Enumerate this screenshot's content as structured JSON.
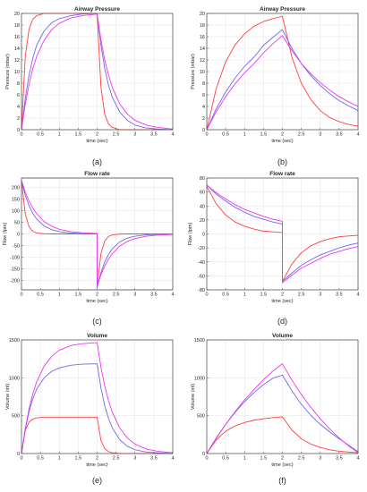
{
  "colors": {
    "red": "#ff4040",
    "blue": "#6a6ae8",
    "magenta": "#f035f0"
  },
  "chart_data": [
    {
      "type": "line",
      "panel_label": "(a)",
      "title": "Airway Pressure",
      "xlabel": "time (sec)",
      "ylabel": "Pressure (mbar)",
      "xlim": [
        0,
        4
      ],
      "ylim": [
        0,
        20
      ],
      "grid": true,
      "xticks": [
        0,
        0.5,
        1,
        1.5,
        2,
        2.5,
        3,
        3.5,
        4
      ],
      "xticklabels": [
        "0",
        "0.5",
        "1",
        "1.5",
        "2",
        "2.5",
        "3",
        "3.5",
        "4"
      ],
      "yticks": [
        0,
        2,
        4,
        6,
        8,
        10,
        12,
        14,
        16,
        18,
        20
      ],
      "yticklabels": [
        "0",
        "2",
        "4",
        "6",
        "8",
        "10",
        "12",
        "14",
        "16",
        "18",
        "20"
      ],
      "x": [
        0,
        0.1,
        0.2,
        0.3,
        0.4,
        0.6,
        0.8,
        1.0,
        1.3,
        1.6,
        2.0,
        2.1,
        2.2,
        2.3,
        2.4,
        2.6,
        2.8,
        3.0,
        3.3,
        3.6,
        4.0
      ],
      "series": [
        {
          "color": "red",
          "values": [
            0,
            12.6,
            17.3,
            19.0,
            19.6,
            20.0,
            20.0,
            20.0,
            20.0,
            20.0,
            20.0,
            7.4,
            2.7,
            1.0,
            0.4,
            0.0,
            0.0,
            0.0,
            0.0,
            0.0,
            0.0
          ]
        },
        {
          "color": "blue",
          "values": [
            0,
            5.4,
            9.4,
            12.3,
            14.5,
            17.0,
            18.4,
            19.1,
            19.6,
            19.9,
            20.0,
            14.6,
            10.6,
            7.7,
            5.6,
            3.0,
            1.6,
            0.8,
            0.3,
            0.1,
            0.0
          ]
        },
        {
          "color": "magenta",
          "values": [
            0,
            4.4,
            7.8,
            10.5,
            12.6,
            15.4,
            17.2,
            18.3,
            19.2,
            19.6,
            19.9,
            15.5,
            12.0,
            9.4,
            7.3,
            4.4,
            2.7,
            1.6,
            0.8,
            0.4,
            0.1
          ]
        }
      ]
    },
    {
      "type": "line",
      "panel_label": "(b)",
      "title": "Airway Pressure",
      "xlabel": "time (sec)",
      "ylabel": "Pressure (mbar)",
      "xlim": [
        0,
        4
      ],
      "ylim": [
        0,
        20
      ],
      "grid": true,
      "xticks": [
        0,
        0.5,
        1,
        1.5,
        2,
        2.5,
        3,
        3.5,
        4
      ],
      "xticklabels": [
        "0",
        "0.5",
        "1",
        "1.5",
        "2",
        "2.5",
        "3",
        "3.5",
        "4"
      ],
      "yticks": [
        0,
        2,
        4,
        6,
        8,
        10,
        12,
        14,
        16,
        18,
        20
      ],
      "yticklabels": [
        "0",
        "2",
        "4",
        "6",
        "8",
        "10",
        "12",
        "14",
        "16",
        "18",
        "20"
      ],
      "x": [
        0,
        0.25,
        0.5,
        0.75,
        1.0,
        1.25,
        1.5,
        1.75,
        2.0,
        2.25,
        2.5,
        2.75,
        3.0,
        3.25,
        3.5,
        3.75,
        4.0
      ],
      "series": [
        {
          "color": "red",
          "values": [
            0,
            7.1,
            11.7,
            14.6,
            16.5,
            17.8,
            18.6,
            19.1,
            19.5,
            12.5,
            8.0,
            5.2,
            3.3,
            2.1,
            1.4,
            0.9,
            0.6
          ]
        },
        {
          "color": "blue",
          "values": [
            0,
            3.6,
            6.5,
            8.9,
            10.9,
            12.5,
            14.5,
            15.9,
            17.2,
            14.0,
            11.4,
            9.3,
            7.6,
            6.2,
            5.0,
            4.1,
            3.3
          ]
        },
        {
          "color": "magenta",
          "values": [
            0,
            3.1,
            5.7,
            7.9,
            9.8,
            11.4,
            13.2,
            14.8,
            16.2,
            13.6,
            11.4,
            9.6,
            8.1,
            6.8,
            5.7,
            4.8,
            4.0
          ]
        }
      ]
    },
    {
      "type": "line",
      "panel_label": "(c)",
      "title": "Flow rate",
      "xlabel": "time (sec)",
      "ylabel": "Flow (lpm)",
      "xlim": [
        0,
        4
      ],
      "ylim": [
        -240,
        240
      ],
      "grid": true,
      "xticks": [
        0,
        0.5,
        1,
        1.5,
        2,
        2.5,
        3,
        3.5,
        4
      ],
      "xticklabels": [
        "0",
        "0.5",
        "1",
        "1.5",
        "2",
        "2.5",
        "3",
        "3.5",
        "4"
      ],
      "yticks": [
        -200,
        -150,
        -100,
        -50,
        0,
        50,
        100,
        150,
        200
      ],
      "yticklabels": [
        "-200",
        "-150",
        "-100",
        "-50",
        "0",
        "50",
        "100",
        "150",
        "200"
      ],
      "x": [
        0,
        0.1,
        0.2,
        0.3,
        0.4,
        0.6,
        0.8,
        1.0,
        1.3,
        1.6,
        1.999,
        2.001,
        2.1,
        2.2,
        2.3,
        2.4,
        2.6,
        2.8,
        3.0,
        3.3,
        3.6,
        4.0
      ],
      "series": [
        {
          "color": "red",
          "values": [
            230,
            85,
            31,
            11,
            4,
            1,
            0,
            0,
            0,
            0,
            0,
            -230,
            -85,
            -31,
            -11,
            -4,
            -1,
            0,
            0,
            0,
            0,
            0
          ]
        },
        {
          "color": "blue",
          "values": [
            230,
            167,
            121,
            88,
            64,
            34,
            18,
            10,
            4,
            1,
            0,
            -230,
            -167,
            -121,
            -88,
            -64,
            -34,
            -18,
            -10,
            -4,
            -1,
            0
          ]
        },
        {
          "color": "magenta",
          "values": [
            230,
            180,
            141,
            111,
            87,
            53,
            33,
            20,
            10,
            5,
            2,
            -225,
            -176,
            -138,
            -108,
            -85,
            -52,
            -32,
            -20,
            -10,
            -5,
            -2
          ]
        }
      ]
    },
    {
      "type": "line",
      "panel_label": "(d)",
      "title": "Flow rate",
      "xlabel": "time (sec)",
      "ylabel": "Flow (lpm)",
      "xlim": [
        0,
        4
      ],
      "ylim": [
        -80,
        80
      ],
      "grid": true,
      "xticks": [
        0,
        0.5,
        1,
        1.5,
        2,
        2.5,
        3,
        3.5,
        4
      ],
      "xticklabels": [
        "0",
        "0.5",
        "1",
        "1.5",
        "2",
        "2.5",
        "3",
        "3.5",
        "4"
      ],
      "yticks": [
        -80,
        -60,
        -40,
        -20,
        0,
        20,
        40,
        60,
        80
      ],
      "yticklabels": [
        "-80",
        "-60",
        "-40",
        "-20",
        "0",
        "20",
        "40",
        "60",
        "80"
      ],
      "x": [
        0,
        0.25,
        0.5,
        0.75,
        1.0,
        1.25,
        1.5,
        1.75,
        1.999,
        2.001,
        2.25,
        2.5,
        2.75,
        3.0,
        3.25,
        3.5,
        3.75,
        4.0
      ],
      "series": [
        {
          "color": "red",
          "values": [
            68,
            43,
            27,
            17,
            11,
            7,
            4,
            3,
            2,
            -68,
            -43,
            -27,
            -17,
            -11,
            -7,
            -4,
            -3,
            -2
          ]
        },
        {
          "color": "blue",
          "values": [
            70,
            57,
            47,
            38,
            31,
            25,
            21,
            17,
            14,
            -68,
            -56,
            -45,
            -37,
            -30,
            -25,
            -20,
            -16,
            -13
          ]
        },
        {
          "color": "magenta",
          "values": [
            70,
            59,
            50,
            42,
            35,
            30,
            25,
            21,
            18,
            -70,
            -59,
            -49,
            -42,
            -35,
            -29,
            -25,
            -21,
            -18
          ]
        }
      ]
    },
    {
      "type": "line",
      "panel_label": "(e)",
      "title": "Volume",
      "xlabel": "time (sec)",
      "ylabel": "Volume (ml)",
      "xlim": [
        0,
        4
      ],
      "ylim": [
        0,
        1500
      ],
      "grid": true,
      "xticks": [
        0,
        0.5,
        1,
        1.5,
        2,
        2.5,
        3,
        3.5,
        4
      ],
      "xticklabels": [
        "0",
        "0.5",
        "1",
        "1.5",
        "2",
        "2.5",
        "3",
        "3.5",
        "4"
      ],
      "yticks": [
        0,
        500,
        1000,
        1500
      ],
      "yticklabels": [
        "0",
        "500",
        "1000",
        "1500"
      ],
      "x": [
        0,
        0.1,
        0.2,
        0.3,
        0.4,
        0.6,
        0.8,
        1.0,
        1.3,
        1.6,
        2.0,
        2.1,
        2.2,
        2.3,
        2.4,
        2.6,
        2.8,
        3.0,
        3.3,
        3.6,
        4.0
      ],
      "series": [
        {
          "color": "red",
          "values": [
            0,
            305,
            415,
            455,
            470,
            480,
            480,
            480,
            480,
            480,
            480,
            175,
            65,
            25,
            10,
            0,
            0,
            0,
            0,
            0,
            0
          ]
        },
        {
          "color": "blue",
          "values": [
            0,
            320,
            555,
            725,
            850,
            1000,
            1085,
            1130,
            1165,
            1180,
            1185,
            870,
            635,
            465,
            340,
            180,
            95,
            50,
            20,
            10,
            0
          ]
        },
        {
          "color": "magenta",
          "values": [
            0,
            330,
            590,
            790,
            945,
            1155,
            1285,
            1365,
            1425,
            1450,
            1465,
            1145,
            895,
            700,
            545,
            335,
            205,
            125,
            60,
            30,
            10
          ]
        }
      ]
    },
    {
      "type": "line",
      "panel_label": "(f)",
      "title": "Volume",
      "xlabel": "time (sec)",
      "ylabel": "Volume (ml)",
      "xlim": [
        0,
        4
      ],
      "ylim": [
        0,
        1500
      ],
      "grid": true,
      "xticks": [
        0,
        0.5,
        1,
        1.5,
        2,
        2.5,
        3,
        3.5,
        4
      ],
      "xticklabels": [
        "0",
        "0.5",
        "1",
        "1.5",
        "2",
        "2.5",
        "3",
        "3.5",
        "4"
      ],
      "yticks": [
        0,
        500,
        1000,
        1500
      ],
      "yticklabels": [
        "0",
        "500",
        "1000",
        "1500"
      ],
      "x": [
        0,
        0.25,
        0.5,
        0.75,
        1.0,
        1.25,
        1.5,
        1.75,
        2.0,
        2.25,
        2.5,
        2.75,
        3.0,
        3.25,
        3.5,
        3.75,
        4.0
      ],
      "series": [
        {
          "color": "red",
          "values": [
            0,
            180,
            295,
            365,
            410,
            440,
            460,
            475,
            485,
            310,
            195,
            125,
            80,
            50,
            30,
            20,
            10
          ]
        },
        {
          "color": "blue",
          "values": [
            0,
            205,
            385,
            545,
            685,
            805,
            910,
            995,
            1035,
            830,
            650,
            505,
            385,
            285,
            195,
            110,
            25
          ]
        },
        {
          "color": "magenta",
          "values": [
            0,
            200,
            385,
            555,
            710,
            845,
            975,
            1090,
            1185,
            970,
            780,
            610,
            460,
            325,
            205,
            100,
            10
          ]
        }
      ]
    }
  ]
}
